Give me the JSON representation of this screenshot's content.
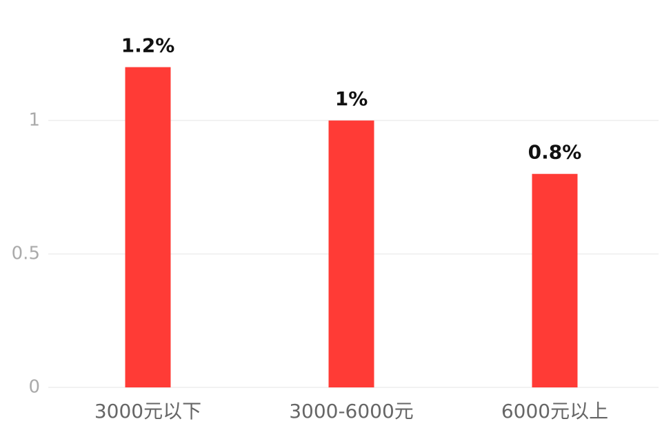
{
  "chart_data": {
    "type": "bar",
    "categories": [
      "3000元以下",
      "3000-6000元",
      "6000元以上"
    ],
    "values": [
      1.2,
      1,
      0.8
    ],
    "value_labels": [
      "1.2%",
      "1%",
      "0.8%"
    ],
    "color": "#ff3b36",
    "ylim": [
      0,
      1.4
    ],
    "yticks": [
      0,
      0.5,
      1
    ],
    "grid": true
  }
}
